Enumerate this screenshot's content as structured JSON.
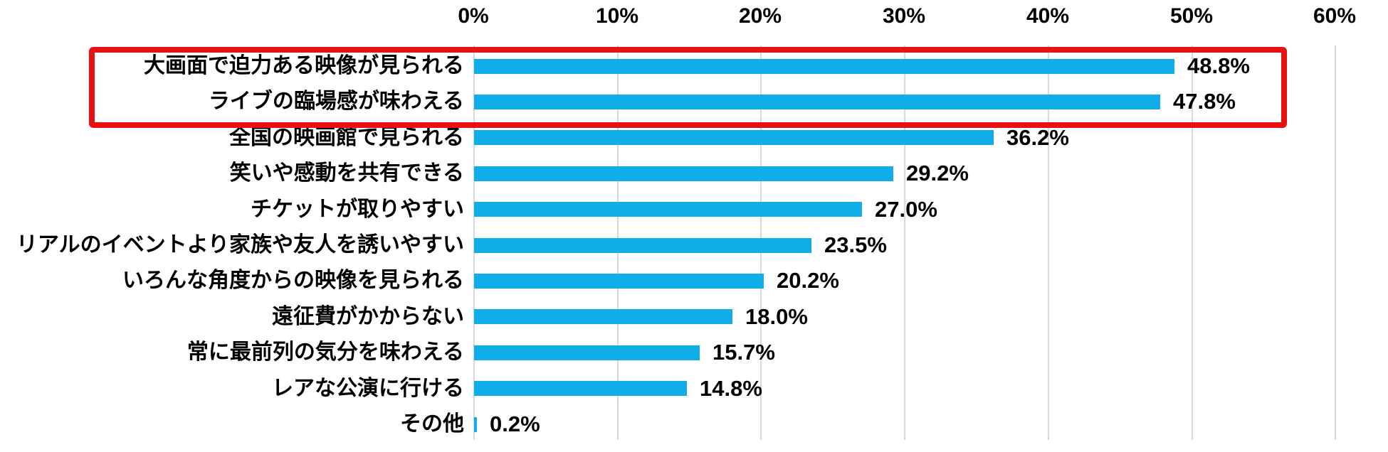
{
  "chart_data": {
    "type": "bar",
    "orientation": "horizontal",
    "title": "",
    "categories": [
      "大画面で迫力ある映像が見られる",
      "ライブの臨場感が味わえる",
      "全国の映画館で見られる",
      "笑いや感動を共有できる",
      "チケットが取りやすい",
      "リアルのイベントより家族や友人を誘いやすい",
      "いろんな角度からの映像を見られる",
      "遠征費がかからない",
      "常に最前列の気分を味わえる",
      "レアな公演に行ける",
      "その他"
    ],
    "values": [
      48.8,
      47.8,
      36.2,
      29.2,
      27.0,
      23.5,
      20.2,
      18.0,
      15.7,
      14.8,
      0.2
    ],
    "value_labels": [
      "48.8%",
      "47.8%",
      "36.2%",
      "29.2%",
      "27.0%",
      "23.5%",
      "20.2%",
      "18.0%",
      "15.7%",
      "14.8%",
      "0.2%"
    ],
    "x_axis": {
      "tick_labels": [
        "0%",
        "10%",
        "20%",
        "30%",
        "40%",
        "50%",
        "60%"
      ],
      "tick_values": [
        0,
        10,
        20,
        30,
        40,
        50,
        60
      ],
      "min": 0,
      "max": 60,
      "unit": "%",
      "position": "top"
    },
    "grid": true,
    "legend": false,
    "bar_color": "#10ade8",
    "annotation": {
      "kind": "highlight-rectangle",
      "highlighted_categories": [
        "大画面で迫力ある映像が見られる",
        "ライブの臨場感が味わえる"
      ],
      "color": "#e81111"
    }
  },
  "colors": {
    "bar": "#10ade8",
    "highlight_border": "#e81111",
    "gridline": "#d9d9d9",
    "text": "#000000",
    "background": "#ffffff"
  }
}
